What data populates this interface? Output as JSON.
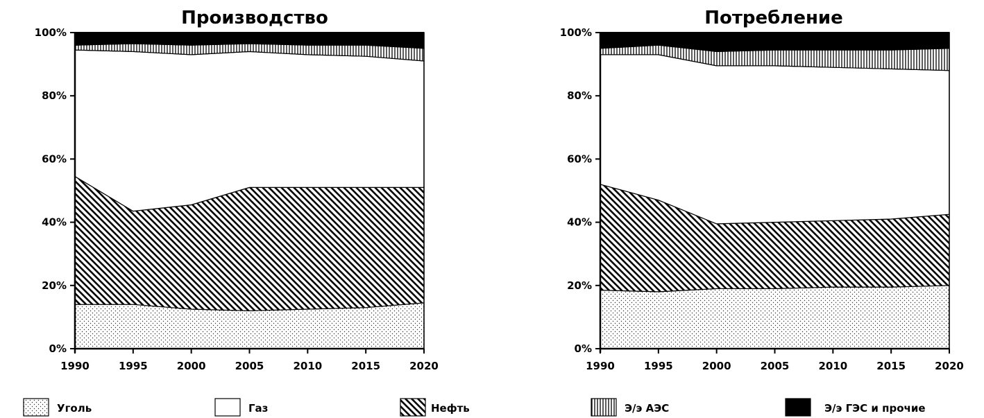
{
  "chart_data": [
    {
      "type": "area",
      "stacked": "percent",
      "title": "Производство",
      "x": [
        1990,
        1995,
        2000,
        2005,
        2010,
        2015,
        2020
      ],
      "xticks": [
        "1990",
        "1995",
        "2000",
        "2005",
        "2010",
        "2015",
        "2020"
      ],
      "yticks": [
        "0%",
        "20%",
        "40%",
        "60%",
        "80%",
        "100%"
      ],
      "ylim": [
        0,
        100
      ],
      "xlim": [
        1990,
        2020
      ],
      "grid": false,
      "series": [
        {
          "name": "Уголь",
          "values": [
            14,
            14,
            12.5,
            12,
            12.5,
            13,
            14.5
          ]
        },
        {
          "name": "Нефть",
          "values": [
            40.5,
            29.5,
            33,
            39,
            38.5,
            38,
            36.5
          ]
        },
        {
          "name": "Газ",
          "values": [
            40,
            50.5,
            47.5,
            43,
            42,
            41.5,
            40
          ]
        },
        {
          "name": "Э/э АЭС",
          "values": [
            1.5,
            2.5,
            3,
            2.5,
            3,
            3.5,
            4
          ]
        },
        {
          "name": "Э/э ГЭС и прочие",
          "values": [
            4,
            3.5,
            4,
            3.5,
            4,
            4,
            5
          ]
        }
      ]
    },
    {
      "type": "area",
      "stacked": "percent",
      "title": "Потребление",
      "x": [
        1990,
        1995,
        2000,
        2005,
        2010,
        2015,
        2020
      ],
      "xticks": [
        "1990",
        "1995",
        "2000",
        "2005",
        "2010",
        "2015",
        "2020"
      ],
      "yticks": [
        "0%",
        "20%",
        "40%",
        "60%",
        "80%",
        "100%"
      ],
      "ylim": [
        0,
        100
      ],
      "xlim": [
        1990,
        2020
      ],
      "grid": false,
      "series": [
        {
          "name": "Уголь",
          "values": [
            18.5,
            18,
            19,
            19,
            19.5,
            19.5,
            20
          ]
        },
        {
          "name": "Нефть",
          "values": [
            33.5,
            29,
            20.5,
            21,
            21,
            21.5,
            22.5
          ]
        },
        {
          "name": "Газ",
          "values": [
            41,
            46,
            50,
            49.5,
            48.5,
            47.5,
            45.5
          ]
        },
        {
          "name": "Э/э АЭС",
          "values": [
            2,
            3,
            4.5,
            5,
            5.5,
            6,
            7
          ]
        },
        {
          "name": "Э/э ГЭС и прочие",
          "values": [
            5,
            4,
            6,
            5.5,
            5.5,
            5.5,
            5
          ]
        }
      ]
    }
  ],
  "legend": {
    "position": "bottom",
    "items": [
      {
        "label": "Уголь",
        "pattern": "dots"
      },
      {
        "label": "Газ",
        "pattern": "blank"
      },
      {
        "label": "Нефть",
        "pattern": "diagonal"
      },
      {
        "label": "Э/э АЭС",
        "pattern": "vertical"
      },
      {
        "label": "Э/э ГЭС и прочие",
        "pattern": "solid"
      }
    ]
  },
  "colors": {
    "ink": "#000000",
    "background": "#ffffff"
  }
}
